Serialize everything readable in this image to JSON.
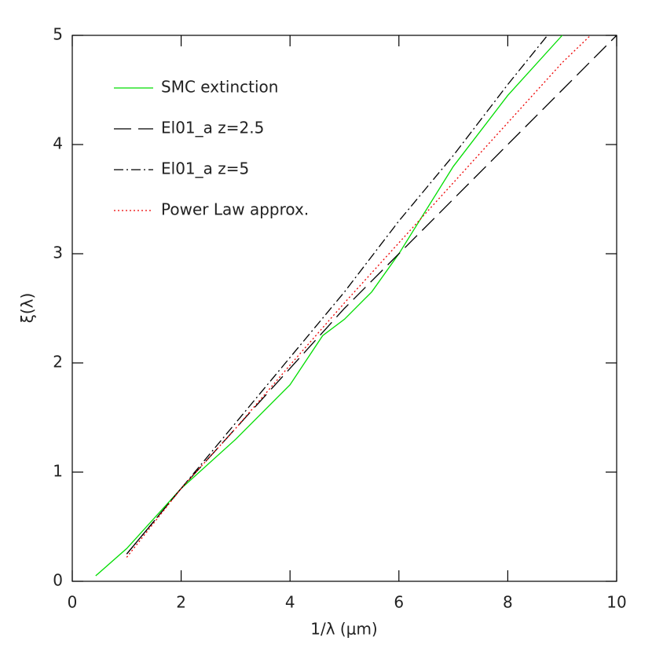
{
  "chart_data": {
    "type": "line",
    "x_label": "1/λ (μm)",
    "y_label": "ξ(λ)",
    "xlim": [
      0,
      10
    ],
    "ylim": [
      0,
      5
    ],
    "xticks": [
      0,
      2,
      4,
      6,
      8,
      10
    ],
    "yticks": [
      0,
      1,
      2,
      3,
      4,
      5
    ],
    "legend": "upper left",
    "series": [
      {
        "name": "SMC extinction",
        "color": "#00dd00",
        "style": "solid",
        "x": [
          0.43,
          1,
          2,
          3,
          4,
          4.6,
          5,
          5.5,
          6,
          7,
          8,
          9
        ],
        "values": [
          0.05,
          0.3,
          0.85,
          1.3,
          1.8,
          2.25,
          2.4,
          2.65,
          3.0,
          3.8,
          4.45,
          5.0
        ]
      },
      {
        "name": "El01_a z=2.5",
        "color": "#000000",
        "style": "dashed",
        "x": [
          1,
          2,
          3,
          4,
          5,
          6,
          7,
          8,
          9,
          10
        ],
        "values": [
          0.25,
          0.85,
          1.4,
          1.95,
          2.5,
          3.0,
          3.5,
          4.0,
          4.5,
          5.0
        ]
      },
      {
        "name": "El01_a z=5",
        "color": "#000000",
        "style": "dashdot",
        "x": [
          1,
          2,
          3,
          4,
          5,
          6,
          7,
          8,
          8.73
        ],
        "values": [
          0.25,
          0.85,
          1.45,
          2.05,
          2.65,
          3.3,
          3.9,
          4.55,
          5.0
        ]
      },
      {
        "name": "Power Law approx.",
        "color": "#ee0000",
        "style": "dotted",
        "x": [
          1,
          2,
          3,
          4,
          5,
          6,
          7,
          8,
          9,
          9.52
        ],
        "values": [
          0.22,
          0.85,
          1.4,
          1.98,
          2.55,
          3.1,
          3.65,
          4.2,
          4.75,
          5.0
        ]
      }
    ]
  }
}
